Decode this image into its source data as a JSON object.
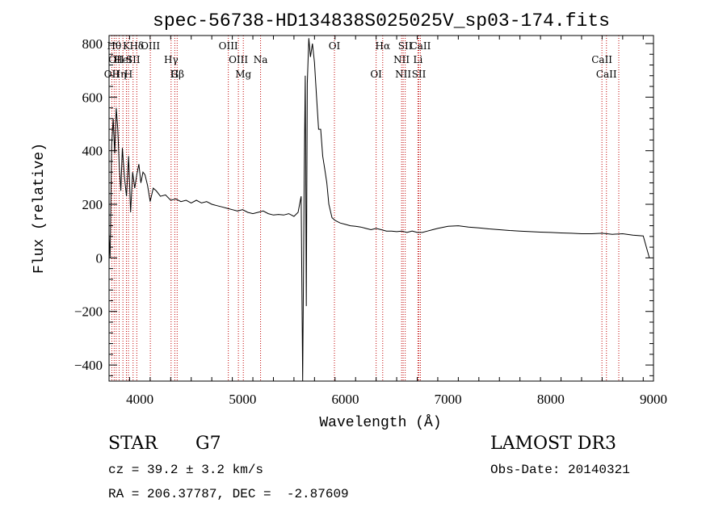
{
  "chart_data": {
    "type": "line",
    "title": "spec-56738-HD134838S025025V_sp03-174.fits",
    "xlabel": "Wavelength (Å)",
    "ylabel": "Flux (relative)",
    "xlim": [
      3700,
      9000
    ],
    "ylim": [
      -460,
      830
    ],
    "x_ticks": [
      4000,
      5000,
      6000,
      7000,
      8000,
      9000
    ],
    "y_ticks": [
      -400,
      -200,
      0,
      200,
      400,
      600,
      800
    ],
    "grid": false,
    "line_color": "#000000",
    "marker_color": "#c00000",
    "series": [
      {
        "x": [
          3700,
          3710,
          3725,
          3740,
          3755,
          3770,
          3785,
          3800,
          3815,
          3830,
          3850,
          3870,
          3890,
          3910,
          3930,
          3950,
          3970,
          3990,
          4010,
          4030,
          4050,
          4075,
          4100,
          4130,
          4160,
          4200,
          4250,
          4300,
          4350,
          4400,
          4450,
          4500,
          4550,
          4600,
          4650,
          4700,
          4750,
          4800,
          4850,
          4900,
          4950,
          5000,
          5050,
          5100,
          5150,
          5200,
          5250,
          5300,
          5350,
          5400,
          5450,
          5500,
          5540,
          5570,
          5585,
          5600,
          5610,
          5620,
          5630,
          5645,
          5660,
          5680,
          5700,
          5720,
          5740,
          5760,
          5780,
          5800,
          5820,
          5840,
          5870,
          5900,
          5950,
          6000,
          6050,
          6100,
          6150,
          6200,
          6250,
          6300,
          6350,
          6400,
          6450,
          6500,
          6550,
          6600,
          6650,
          6700,
          6750,
          6800,
          6850,
          6900,
          7000,
          7100,
          7200,
          7300,
          7400,
          7500,
          7600,
          7700,
          7800,
          7900,
          8000,
          8100,
          8200,
          8300,
          8400,
          8500,
          8600,
          8700,
          8800,
          8900,
          8960
        ],
        "y": [
          90,
          0,
          420,
          520,
          390,
          560,
          480,
          340,
          250,
          410,
          300,
          230,
          380,
          170,
          320,
          260,
          310,
          350,
          280,
          320,
          310,
          270,
          210,
          260,
          250,
          230,
          235,
          215,
          220,
          210,
          215,
          205,
          215,
          205,
          210,
          200,
          195,
          190,
          185,
          180,
          175,
          180,
          170,
          165,
          170,
          175,
          165,
          160,
          162,
          160,
          165,
          155,
          170,
          230,
          -460,
          300,
          680,
          -180,
          650,
          820,
          750,
          800,
          730,
          600,
          480,
          480,
          380,
          330,
          280,
          200,
          150,
          140,
          130,
          125,
          120,
          118,
          115,
          110,
          105,
          110,
          105,
          100,
          100,
          98,
          100,
          95,
          100,
          95,
          95,
          100,
          105,
          110,
          118,
          120,
          115,
          112,
          108,
          105,
          102,
          100,
          98,
          96,
          95,
          93,
          92,
          90,
          90,
          92,
          88,
          90,
          85,
          82,
          0
        ]
      }
    ],
    "line_markers": [
      {
        "wave": 3727,
        "label": "OII",
        "row": 3
      },
      {
        "wave": 3750,
        "label": "Hθ",
        "row": 1
      },
      {
        "wave": 3770,
        "label": "OII",
        "row": 2
      },
      {
        "wave": 3798,
        "label": "Hη",
        "row": 3
      },
      {
        "wave": 3835,
        "label": "HeI",
        "row": 2
      },
      {
        "wave": 3869,
        "label": "K",
        "row": 1
      },
      {
        "wave": 3889,
        "label": "H",
        "row": 3
      },
      {
        "wave": 3934,
        "label": "SII",
        "row": 2
      },
      {
        "wave": 3970,
        "label": "Hδ",
        "row": 1
      },
      {
        "wave": 4102,
        "label": "OIII",
        "row": 1
      },
      {
        "wave": 4304,
        "label": "Hγ",
        "row": 2
      },
      {
        "wave": 4340,
        "label": "G",
        "row": 3
      },
      {
        "wave": 4363,
        "label": "Hβ",
        "row": 3
      },
      {
        "wave": 4861,
        "label": "OIII",
        "row": 1
      },
      {
        "wave": 4959,
        "label": "OIII",
        "row": 2
      },
      {
        "wave": 5007,
        "label": "Mg",
        "row": 3
      },
      {
        "wave": 5175,
        "label": "Na",
        "row": 2
      },
      {
        "wave": 5894,
        "label": "OI",
        "row": 1
      },
      {
        "wave": 6300,
        "label": "OI",
        "row": 3
      },
      {
        "wave": 6364,
        "label": "Hα",
        "row": 1
      },
      {
        "wave": 6548,
        "label": "NII",
        "row": 2
      },
      {
        "wave": 6563,
        "label": "NII",
        "row": 3
      },
      {
        "wave": 6583,
        "label": "SII",
        "row": 1
      },
      {
        "wave": 6707,
        "label": "Li",
        "row": 2
      },
      {
        "wave": 6716,
        "label": "SII",
        "row": 3
      },
      {
        "wave": 6731,
        "label": "CaII",
        "row": 1
      },
      {
        "wave": 8498,
        "label": "CaII",
        "row": 2
      },
      {
        "wave": 8542,
        "label": "CaII",
        "row": 3
      },
      {
        "wave": 8662,
        "label": "",
        "row": 0
      }
    ]
  },
  "info": {
    "class_label": "STAR",
    "subclass": "G7",
    "survey": "LAMOST DR3",
    "cz": "cz = 39.2 ± 3.2 km/s",
    "obs_date": "Obs-Date: 20140321",
    "coords": "RA = 206.37787, DEC =  -2.87609"
  }
}
